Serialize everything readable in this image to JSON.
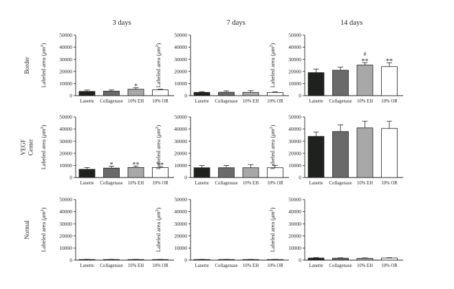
{
  "colors": {
    "axis": "#231f20",
    "lanette": "#1f211f",
    "collagenase": "#6a6a6a",
    "eh": "#a8a8a8",
    "or": "#ffffff"
  },
  "columns": [
    "3 days",
    "7 days",
    "14 days"
  ],
  "rows": [
    "Border",
    "VEGF\nCenter",
    "Normal"
  ],
  "chart_data": [
    {
      "type": "bar",
      "column": "3 days",
      "row": "Border",
      "ylabel": "Labeled area (μm²)",
      "ylim": [
        0,
        50000
      ],
      "yticks": [
        0,
        10000,
        20000,
        30000,
        40000,
        50000
      ],
      "categories": [
        "Lanette",
        "Collagenase",
        "10% EH",
        "10% OR"
      ],
      "values": [
        3500,
        3700,
        5300,
        4800
      ],
      "errors": [
        1100,
        1000,
        1200,
        500
      ],
      "annotations": [
        "",
        "",
        "*",
        ""
      ]
    },
    {
      "type": "bar",
      "column": "7 days",
      "row": "Border",
      "ylabel": "Labeled area (μm²)",
      "ylim": [
        0,
        50000
      ],
      "yticks": [
        0,
        10000,
        20000,
        30000,
        40000,
        50000
      ],
      "categories": [
        "Lanette",
        "Collagenase",
        "10% EH",
        "10% OR"
      ],
      "values": [
        2700,
        2800,
        2700,
        2600
      ],
      "errors": [
        600,
        1200,
        1400,
        500
      ],
      "annotations": [
        "",
        "",
        "",
        ""
      ]
    },
    {
      "type": "bar",
      "column": "14 days",
      "row": "Border",
      "ylabel": "Labeled area (μm²)",
      "ylim": [
        0,
        50000
      ],
      "yticks": [
        0,
        10000,
        20000,
        30000,
        40000,
        50000
      ],
      "categories": [
        "Lanette",
        "Collagenase",
        "10% EH",
        "10% OR"
      ],
      "values": [
        19000,
        21000,
        25300,
        24000
      ],
      "errors": [
        3000,
        2500,
        2000,
        3200
      ],
      "annotations": [
        "",
        "",
        "#\n**",
        "**"
      ]
    },
    {
      "type": "bar",
      "column": "3 days",
      "row": "VEGF Center",
      "ylabel": "Labeled area (μm²)",
      "ylim": [
        0,
        50000
      ],
      "yticks": [
        0,
        10000,
        20000,
        30000,
        40000,
        50000
      ],
      "categories": [
        "Lanette",
        "Collagenase",
        "10% EH",
        "10% OR"
      ],
      "values": [
        6800,
        7800,
        8300,
        8300
      ],
      "errors": [
        1500,
        1500,
        1200,
        700
      ],
      "annotations": [
        "",
        "*",
        "**",
        "**"
      ]
    },
    {
      "type": "bar",
      "column": "7 days",
      "row": "VEGF Center",
      "ylabel": "Labeled area (μm²)",
      "ylim": [
        0,
        50000
      ],
      "yticks": [
        0,
        10000,
        20000,
        30000,
        40000,
        50000
      ],
      "categories": [
        "Lanette",
        "Collagenase",
        "10% EH",
        "10% OR"
      ],
      "values": [
        8100,
        8100,
        8100,
        8100
      ],
      "errors": [
        1800,
        1800,
        2600,
        2000
      ],
      "annotations": [
        "",
        "",
        "",
        ""
      ]
    },
    {
      "type": "bar",
      "column": "14 days",
      "row": "VEGF Center",
      "ylabel": "Labeled area (μm²)",
      "ylim": [
        0,
        50000
      ],
      "yticks": [
        0,
        10000,
        20000,
        30000,
        40000,
        50000
      ],
      "categories": [
        "Lanette",
        "Collagenase",
        "10% EH",
        "10% OR"
      ],
      "values": [
        34000,
        38000,
        41000,
        40500
      ],
      "errors": [
        3500,
        5500,
        5500,
        6000
      ],
      "annotations": [
        "",
        "",
        "",
        ""
      ]
    },
    {
      "type": "bar",
      "column": "3 days",
      "row": "Normal",
      "ylabel": "Labeled area (μm²)",
      "ylim": [
        0,
        50000
      ],
      "yticks": [
        0,
        10000,
        20000,
        30000,
        40000,
        50000
      ],
      "categories": [
        "Lanette",
        "Collagenase",
        "10% EH",
        "10% OR"
      ],
      "values": [
        500,
        500,
        500,
        500
      ],
      "errors": [
        150,
        150,
        150,
        150
      ],
      "annotations": [
        "",
        "",
        "",
        ""
      ]
    },
    {
      "type": "bar",
      "column": "7 days",
      "row": "Normal",
      "ylabel": "Labeled area (μm²)",
      "ylim": [
        0,
        50000
      ],
      "yticks": [
        0,
        10000,
        20000,
        30000,
        40000,
        50000
      ],
      "categories": [
        "Lanette",
        "Collagenase",
        "10% EH",
        "10% OR"
      ],
      "values": [
        500,
        500,
        500,
        500
      ],
      "errors": [
        150,
        150,
        150,
        150
      ],
      "annotations": [
        "",
        "",
        "",
        ""
      ]
    },
    {
      "type": "bar",
      "column": "14 days",
      "row": "Normal",
      "ylabel": "Labeled area (μm²)",
      "ylim": [
        0,
        50000
      ],
      "yticks": [
        0,
        10000,
        20000,
        30000,
        40000,
        50000
      ],
      "categories": [
        "Lanette",
        "Collagenase",
        "10% EH",
        "10% OR"
      ],
      "values": [
        1700,
        1600,
        1500,
        1700
      ],
      "errors": [
        400,
        300,
        300,
        300
      ],
      "annotations": [
        "",
        "",
        "",
        ""
      ]
    }
  ]
}
